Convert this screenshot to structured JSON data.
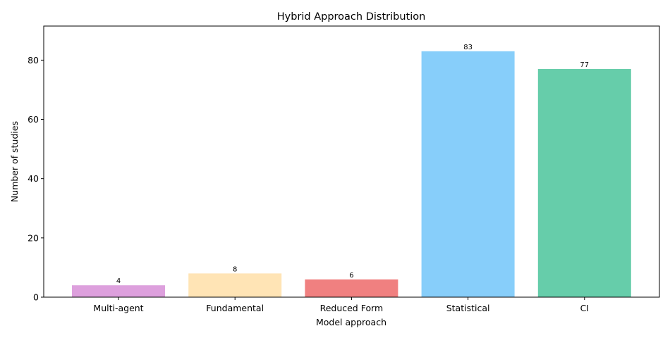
{
  "chart_data": {
    "type": "bar",
    "title": "Hybrid Approach Distribution",
    "xlabel": "Model approach",
    "ylabel": "Number of studies",
    "categories": [
      "Multi-agent",
      "Fundamental",
      "Reduced Form",
      "Statistical",
      "CI"
    ],
    "values": [
      4,
      8,
      6,
      83,
      77
    ],
    "colors": [
      "#dda0dd",
      "#ffe4b5",
      "#f08080",
      "#87cefa",
      "#66cdaa"
    ],
    "ylim": [
      0,
      91.5
    ],
    "yticks": [
      0,
      20,
      40,
      60,
      80
    ],
    "grid": false,
    "legend": "none"
  }
}
